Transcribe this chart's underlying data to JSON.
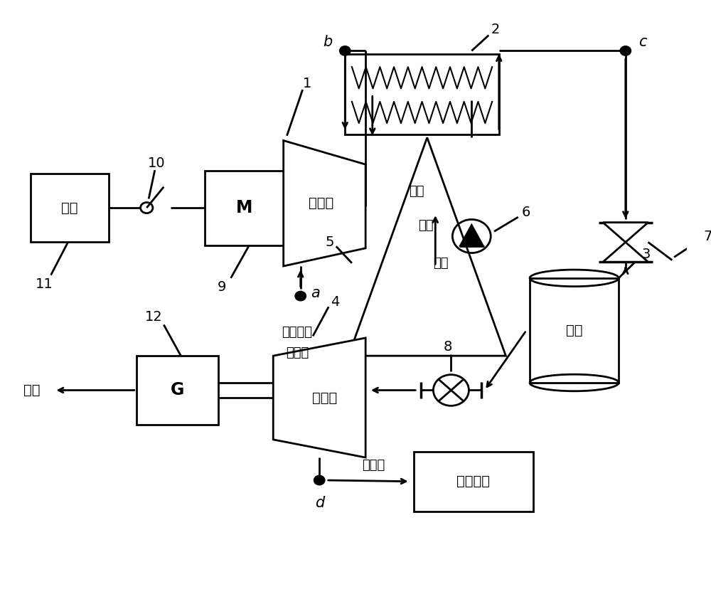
{
  "bg": "#ffffff",
  "lc": "#000000",
  "lw": 2.0,
  "fs": 14,
  "labels": {
    "power": "电源",
    "motor": "M",
    "compressor": "压缩机",
    "tank": "气罐",
    "expander": "膨胀机",
    "generator": "G",
    "cold_room": "用冷场所",
    "supply": "供电",
    "air_in1": "常温常压",
    "air_in2": "的空气",
    "cold_air": "冷空气",
    "hot_water": "热水",
    "air": "空气",
    "cold_water": "冷水"
  }
}
